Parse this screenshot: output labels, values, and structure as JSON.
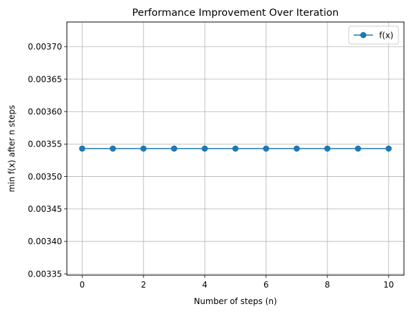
{
  "chart_data": {
    "type": "line",
    "title": "Performance Improvement Over Iteration",
    "xlabel": "Number of steps (n)",
    "ylabel": "min f(x) after n steps",
    "x": [
      0,
      1,
      2,
      3,
      4,
      5,
      6,
      7,
      8,
      9,
      10
    ],
    "series": [
      {
        "name": "f(x)",
        "values": [
          0.003543,
          0.003543,
          0.003543,
          0.003543,
          0.003543,
          0.003543,
          0.003543,
          0.003543,
          0.003543,
          0.003543,
          0.003543
        ],
        "color": "#1f77b4",
        "marker": "circle"
      }
    ],
    "xlim": [
      -0.5,
      10.5
    ],
    "ylim": [
      0.003348,
      0.003738
    ],
    "xticks": [
      0,
      2,
      4,
      6,
      8,
      10
    ],
    "xtick_labels": [
      "0",
      "2",
      "4",
      "6",
      "8",
      "10"
    ],
    "yticks": [
      0.00335,
      0.0034,
      0.00345,
      0.0035,
      0.00355,
      0.0036,
      0.00365,
      0.0037
    ],
    "ytick_labels": [
      "0.00335",
      "0.00340",
      "0.00345",
      "0.00350",
      "0.00355",
      "0.00360",
      "0.00365",
      "0.00370"
    ],
    "grid": true,
    "legend_position": "top-right"
  }
}
